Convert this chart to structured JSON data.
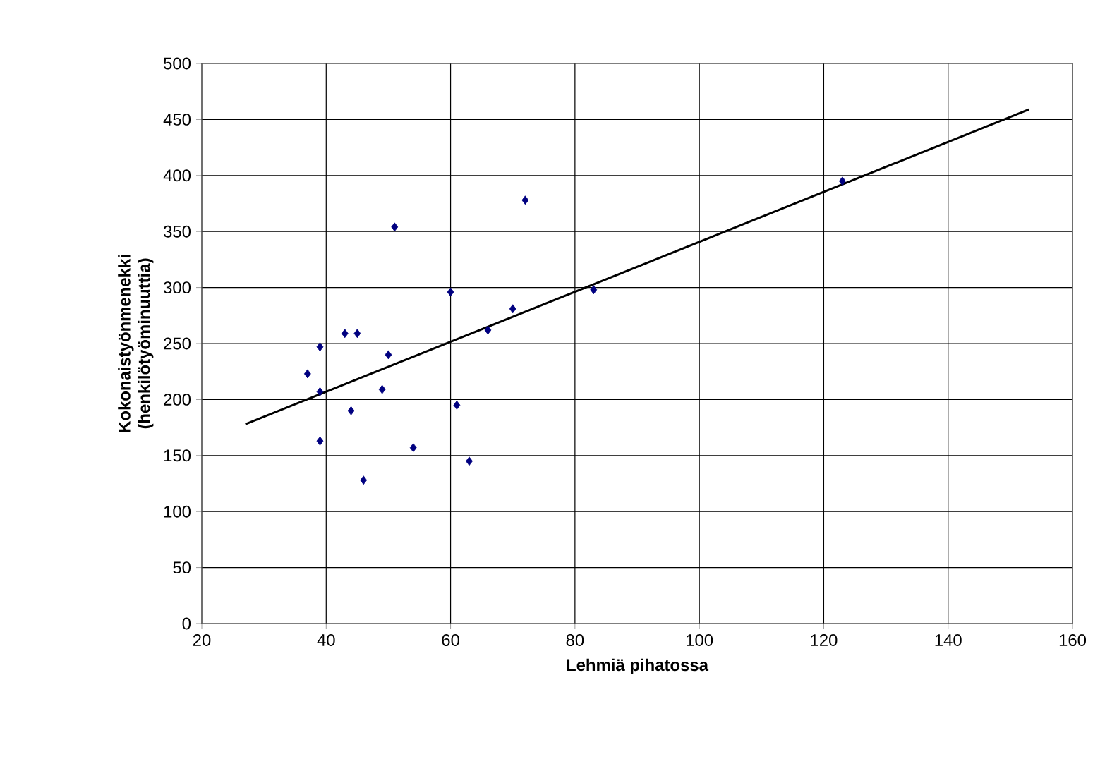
{
  "chart_data": {
    "type": "scatter",
    "xlabel": "Lehmiä pihatossa",
    "ylabel": "Kokonaistyönmenekki (henkilötyöminuuttia)",
    "xlim": [
      20,
      160
    ],
    "xticks": [
      20,
      40,
      60,
      80,
      100,
      120,
      140,
      160
    ],
    "ylim": [
      0,
      500
    ],
    "yticks": [
      0,
      50,
      100,
      150,
      200,
      250,
      300,
      350,
      400,
      450,
      500
    ],
    "grid": true,
    "marker": "diamond",
    "series": [
      {
        "color": "#000080",
        "x": [
          37,
          39,
          39,
          39,
          43,
          45,
          44,
          46,
          49,
          50,
          51,
          54,
          60,
          61,
          63,
          66,
          70,
          72,
          83,
          123
        ],
        "values": [
          223,
          247,
          207,
          163,
          259,
          259,
          190,
          128,
          209,
          240,
          354,
          157,
          296,
          195,
          145,
          262,
          281,
          378,
          298,
          395
        ]
      },
      {
        "type": "line",
        "color": "#000000",
        "marker": "none",
        "x": [
          27,
          153
        ],
        "values": [
          178,
          459
        ]
      }
    ]
  }
}
